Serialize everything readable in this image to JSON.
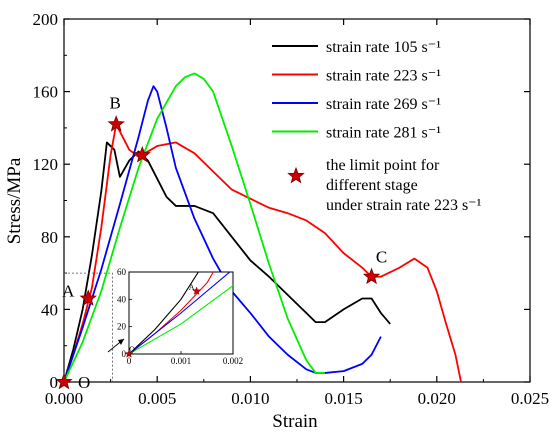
{
  "chart_data": {
    "type": "line",
    "title": "",
    "xlabel": "Strain",
    "ylabel": "Stress/MPa",
    "xlim": [
      0,
      0.025
    ],
    "ylim": [
      0,
      200
    ],
    "xticks": [
      0,
      0.005,
      0.01,
      0.015,
      0.02,
      0.025
    ],
    "xtick_labels": [
      "0.000",
      "0.005",
      "0.010",
      "0.015",
      "0.020",
      "0.025"
    ],
    "yticks": [
      0,
      40,
      80,
      120,
      160,
      200
    ],
    "ytick_labels": [
      "0",
      "40",
      "80",
      "120",
      "160",
      "200"
    ],
    "legend_position": "top-right",
    "series": [
      {
        "name": "strain rate 105 s⁻¹",
        "color": "#000000",
        "x": [
          0,
          0.0005,
          0.001,
          0.0015,
          0.002,
          0.0023,
          0.0027,
          0.003,
          0.0035,
          0.004,
          0.0045,
          0.005,
          0.0055,
          0.006,
          0.007,
          0.008,
          0.009,
          0.01,
          0.011,
          0.012,
          0.013,
          0.0135,
          0.014,
          0.015,
          0.016,
          0.0165,
          0.017,
          0.0175
        ],
        "y": [
          0,
          18,
          40,
          70,
          105,
          132,
          128,
          113,
          122,
          127,
          122,
          112,
          102,
          97,
          97,
          93,
          80,
          67,
          58,
          48,
          38,
          33,
          33,
          40,
          46,
          46,
          38,
          32
        ]
      },
      {
        "name": "strain rate 223 s⁻¹",
        "color": "#ff0000",
        "x": [
          0,
          0.0005,
          0.001,
          0.0015,
          0.002,
          0.0025,
          0.0028,
          0.003,
          0.0035,
          0.004,
          0.005,
          0.006,
          0.007,
          0.008,
          0.009,
          0.01,
          0.011,
          0.012,
          0.013,
          0.014,
          0.015,
          0.016,
          0.0165,
          0.017,
          0.018,
          0.0188,
          0.0195,
          0.02,
          0.0205,
          0.021,
          0.0213
        ],
        "y": [
          0,
          15,
          32,
          52,
          85,
          125,
          142,
          138,
          128,
          124,
          130,
          132,
          126,
          116,
          106,
          101,
          96,
          93,
          89,
          82,
          71,
          63,
          58,
          58,
          63,
          68,
          63,
          50,
          32,
          15,
          0
        ]
      },
      {
        "name": "strain rate 269 s⁻¹",
        "color": "#0000ff",
        "x": [
          0,
          0.001,
          0.002,
          0.003,
          0.004,
          0.0045,
          0.0048,
          0.005,
          0.0055,
          0.006,
          0.007,
          0.008,
          0.009,
          0.01,
          0.011,
          0.012,
          0.013,
          0.0135,
          0.014,
          0.015,
          0.016,
          0.0165,
          0.017
        ],
        "y": [
          0,
          30,
          62,
          98,
          135,
          155,
          163,
          160,
          140,
          118,
          90,
          68,
          50,
          38,
          25,
          15,
          7,
          5,
          5,
          6,
          10,
          15,
          25
        ]
      },
      {
        "name": "strain rate 281 s⁻¹",
        "color": "#00ee00",
        "x": [
          0,
          0.001,
          0.002,
          0.003,
          0.004,
          0.005,
          0.006,
          0.0065,
          0.007,
          0.0075,
          0.008,
          0.009,
          0.01,
          0.011,
          0.012,
          0.013,
          0.0135,
          0.014
        ],
        "y": [
          0,
          22,
          50,
          85,
          118,
          145,
          163,
          168,
          170,
          167,
          160,
          130,
          98,
          65,
          35,
          12,
          5,
          5
        ]
      }
    ],
    "limit_points": {
      "legend_label_lines": [
        "the limit point for",
        "different stage",
        "under strain rate 223 s⁻¹"
      ],
      "color": "#cc0000",
      "points": [
        {
          "label": "O",
          "x": 0,
          "y": 0
        },
        {
          "label": "A",
          "x": 0.0013,
          "y": 46
        },
        {
          "label": "B",
          "x": 0.0028,
          "y": 142
        },
        {
          "label": "",
          "x": 0.0042,
          "y": 125
        },
        {
          "label": "C",
          "x": 0.0165,
          "y": 58
        }
      ]
    },
    "inset": {
      "xlim": [
        0,
        0.002
      ],
      "ylim": [
        0,
        60
      ],
      "xticks": [
        0,
        0.001,
        0.002
      ],
      "xtick_labels": [
        "0",
        "0.001",
        "0.002"
      ],
      "yticks": [
        0,
        20,
        40,
        60
      ],
      "ytick_labels": [
        "0",
        "20",
        "40",
        "60"
      ],
      "points": [
        {
          "label": "O",
          "x": 0,
          "y": 0
        },
        {
          "label": "A",
          "x": 0.0013,
          "y": 46
        }
      ]
    }
  }
}
